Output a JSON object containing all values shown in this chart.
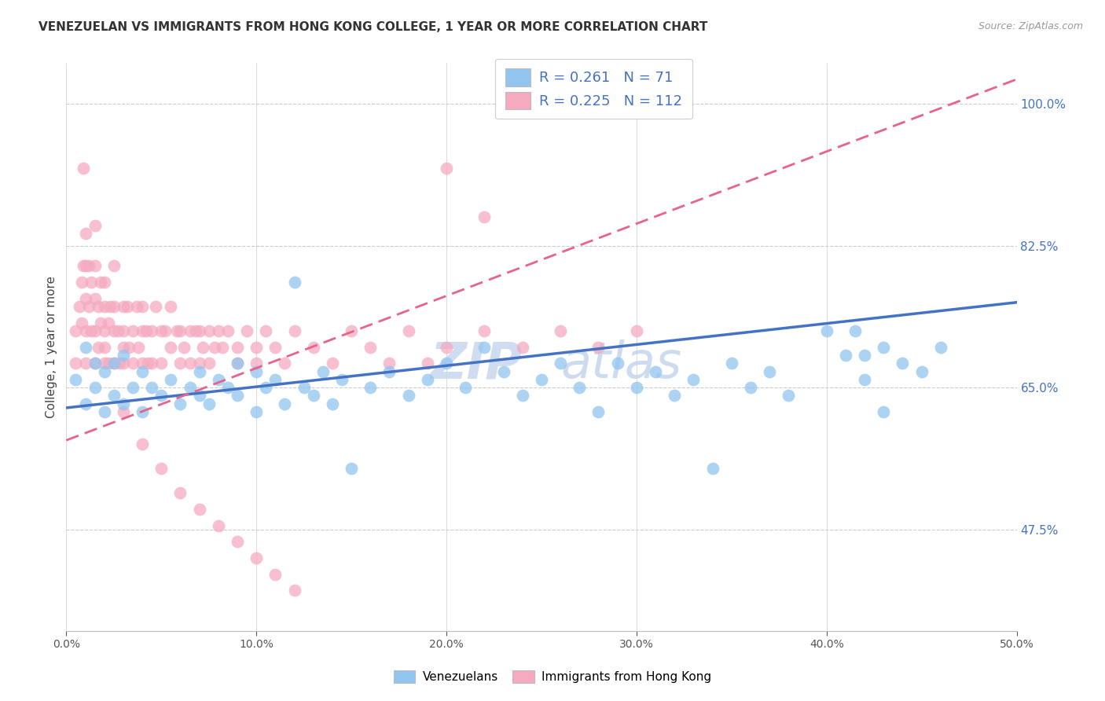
{
  "title": "VENEZUELAN VS IMMIGRANTS FROM HONG KONG COLLEGE, 1 YEAR OR MORE CORRELATION CHART",
  "source": "Source: ZipAtlas.com",
  "xlabel_vals": [
    0.0,
    0.1,
    0.2,
    0.3,
    0.4,
    0.5
  ],
  "ylabel_vals": [
    0.475,
    0.65,
    0.825,
    1.0
  ],
  "ylabel_label": "College, 1 year or more",
  "xmin": 0.0,
  "xmax": 0.5,
  "ymin": 0.35,
  "ymax": 1.05,
  "blue_R": 0.261,
  "blue_N": 71,
  "pink_R": 0.225,
  "pink_N": 112,
  "blue_color": "#92C5F0",
  "pink_color": "#F5AABF",
  "blue_line_color": "#4472C4",
  "pink_line_color": "#E8638A",
  "legend_label1": "Venezuelans",
  "legend_label2": "Immigrants from Hong Kong",
  "watermark_zip": "ZIP",
  "watermark_atlas": "atlas",
  "blue_line_x0": 0.0,
  "blue_line_y0": 0.625,
  "blue_line_x1": 0.5,
  "blue_line_y1": 0.755,
  "pink_line_x0": 0.0,
  "pink_line_y0": 0.585,
  "pink_line_x1": 0.5,
  "pink_line_y1": 1.03,
  "blue_x": [
    0.005,
    0.01,
    0.01,
    0.015,
    0.015,
    0.02,
    0.02,
    0.025,
    0.025,
    0.03,
    0.03,
    0.035,
    0.04,
    0.04,
    0.045,
    0.05,
    0.055,
    0.06,
    0.065,
    0.07,
    0.07,
    0.075,
    0.08,
    0.085,
    0.09,
    0.09,
    0.1,
    0.1,
    0.105,
    0.11,
    0.115,
    0.12,
    0.125,
    0.13,
    0.135,
    0.14,
    0.145,
    0.15,
    0.16,
    0.17,
    0.18,
    0.19,
    0.2,
    0.21,
    0.22,
    0.23,
    0.24,
    0.25,
    0.26,
    0.27,
    0.28,
    0.29,
    0.3,
    0.31,
    0.32,
    0.33,
    0.34,
    0.35,
    0.36,
    0.37,
    0.38,
    0.4,
    0.41,
    0.42,
    0.43,
    0.43,
    0.44,
    0.45,
    0.46,
    0.415,
    0.42
  ],
  "blue_y": [
    0.66,
    0.63,
    0.7,
    0.65,
    0.68,
    0.62,
    0.67,
    0.64,
    0.68,
    0.63,
    0.69,
    0.65,
    0.67,
    0.62,
    0.65,
    0.64,
    0.66,
    0.63,
    0.65,
    0.64,
    0.67,
    0.63,
    0.66,
    0.65,
    0.64,
    0.68,
    0.67,
    0.62,
    0.65,
    0.66,
    0.63,
    0.78,
    0.65,
    0.64,
    0.67,
    0.63,
    0.66,
    0.55,
    0.65,
    0.67,
    0.64,
    0.66,
    0.68,
    0.65,
    0.7,
    0.67,
    0.64,
    0.66,
    0.68,
    0.65,
    0.62,
    0.68,
    0.65,
    0.67,
    0.64,
    0.66,
    0.55,
    0.68,
    0.65,
    0.67,
    0.64,
    0.72,
    0.69,
    0.66,
    0.62,
    0.7,
    0.68,
    0.67,
    0.7,
    0.72,
    0.69
  ],
  "pink_x": [
    0.005,
    0.005,
    0.007,
    0.008,
    0.008,
    0.009,
    0.01,
    0.01,
    0.01,
    0.01,
    0.01,
    0.012,
    0.012,
    0.013,
    0.013,
    0.015,
    0.015,
    0.015,
    0.015,
    0.015,
    0.017,
    0.017,
    0.018,
    0.018,
    0.02,
    0.02,
    0.02,
    0.02,
    0.02,
    0.022,
    0.022,
    0.023,
    0.025,
    0.025,
    0.025,
    0.025,
    0.027,
    0.028,
    0.03,
    0.03,
    0.03,
    0.03,
    0.032,
    0.033,
    0.035,
    0.035,
    0.037,
    0.038,
    0.04,
    0.04,
    0.04,
    0.042,
    0.043,
    0.045,
    0.045,
    0.047,
    0.05,
    0.05,
    0.052,
    0.055,
    0.055,
    0.058,
    0.06,
    0.06,
    0.062,
    0.065,
    0.065,
    0.068,
    0.07,
    0.07,
    0.072,
    0.075,
    0.075,
    0.078,
    0.08,
    0.082,
    0.085,
    0.09,
    0.09,
    0.095,
    0.1,
    0.1,
    0.105,
    0.11,
    0.115,
    0.12,
    0.13,
    0.14,
    0.15,
    0.16,
    0.17,
    0.18,
    0.19,
    0.2,
    0.22,
    0.24,
    0.26,
    0.28,
    0.3,
    0.2,
    0.22,
    0.009,
    0.03,
    0.04,
    0.05,
    0.06,
    0.07,
    0.08,
    0.09,
    0.1,
    0.11,
    0.12
  ],
  "pink_y": [
    0.72,
    0.68,
    0.75,
    0.78,
    0.73,
    0.8,
    0.76,
    0.72,
    0.68,
    0.8,
    0.84,
    0.75,
    0.8,
    0.72,
    0.78,
    0.76,
    0.72,
    0.68,
    0.8,
    0.85,
    0.75,
    0.7,
    0.78,
    0.73,
    0.75,
    0.7,
    0.68,
    0.72,
    0.78,
    0.73,
    0.68,
    0.75,
    0.72,
    0.68,
    0.75,
    0.8,
    0.72,
    0.68,
    0.75,
    0.7,
    0.68,
    0.72,
    0.75,
    0.7,
    0.72,
    0.68,
    0.75,
    0.7,
    0.72,
    0.68,
    0.75,
    0.72,
    0.68,
    0.72,
    0.68,
    0.75,
    0.72,
    0.68,
    0.72,
    0.7,
    0.75,
    0.72,
    0.68,
    0.72,
    0.7,
    0.72,
    0.68,
    0.72,
    0.68,
    0.72,
    0.7,
    0.72,
    0.68,
    0.7,
    0.72,
    0.7,
    0.72,
    0.7,
    0.68,
    0.72,
    0.7,
    0.68,
    0.72,
    0.7,
    0.68,
    0.72,
    0.7,
    0.68,
    0.72,
    0.7,
    0.68,
    0.72,
    0.68,
    0.7,
    0.72,
    0.7,
    0.72,
    0.7,
    0.72,
    0.92,
    0.86,
    0.92,
    0.62,
    0.58,
    0.55,
    0.52,
    0.5,
    0.48,
    0.46,
    0.44,
    0.42,
    0.4
  ]
}
